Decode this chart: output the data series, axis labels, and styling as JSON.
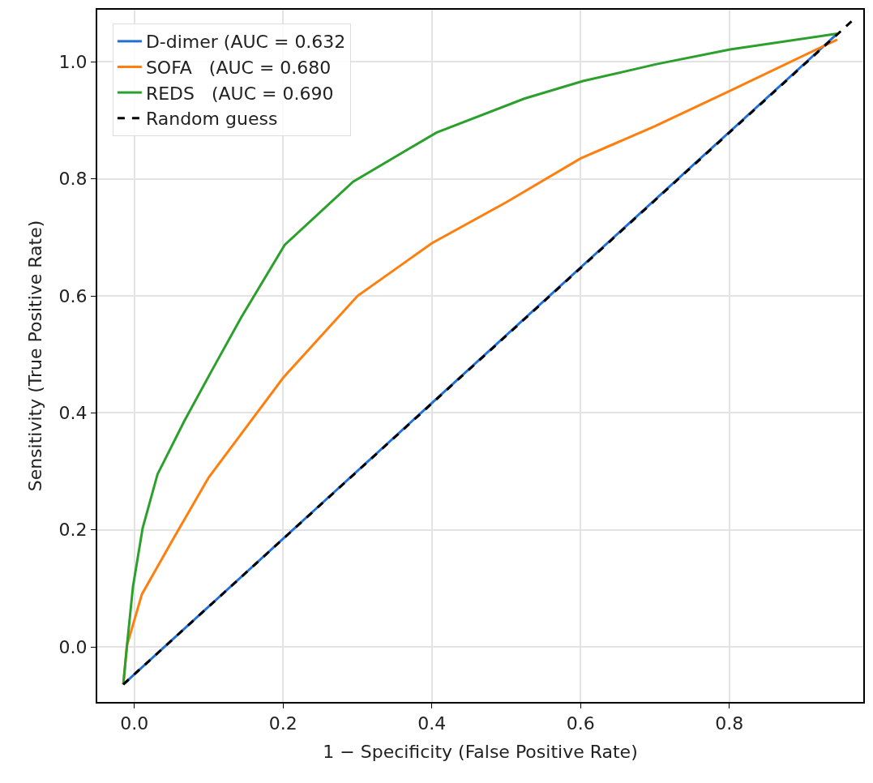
{
  "chart_data": {
    "type": "line",
    "xlabel": "1 − Specificity (False Positive Rate)",
    "ylabel": "Sensitivity (True Positive Rate)",
    "xlim": [
      -0.05,
      0.98
    ],
    "xticks": [
      {
        "value": 0,
        "label": "0.0"
      },
      0.2,
      0.4,
      0.6,
      0.8
    ],
    "ylim": [
      -0.094,
      1.089
    ],
    "yticks": [
      {
        "value": 0,
        "label": "0.0"
      },
      0.2,
      0.4,
      0.6,
      0.8,
      {
        "value": 1,
        "label": "1.0"
      }
    ],
    "grid": true,
    "legend": "top left",
    "series": [
      {
        "name": "D-dimer (AUC = 0.632",
        "color": "#1f6fd6",
        "x": [
          -0.015,
          0.4,
          0.945
        ],
        "values": [
          -0.064,
          0.417,
          1.048
        ]
      },
      {
        "name": "SOFA   (AUC = 0.680",
        "color": "#ff7f0e",
        "x": [
          -0.015,
          -0.01,
          0.01,
          0.05,
          0.1,
          0.2,
          0.3,
          0.4,
          0.5,
          0.6,
          0.7,
          0.8,
          0.945
        ],
        "values": [
          -0.064,
          0.003,
          0.09,
          0.18,
          0.29,
          0.46,
          0.6,
          0.69,
          0.76,
          0.835,
          0.89,
          0.95,
          1.038
        ]
      },
      {
        "name": "REDS   (AUC = 0.690",
        "color": "#2ca02c",
        "x": [
          -0.015,
          -0.01,
          -0.002,
          0.011,
          0.031,
          0.067,
          0.103,
          0.143,
          0.202,
          0.294,
          0.406,
          0.524,
          0.603,
          0.702,
          0.801,
          0.945
        ],
        "values": [
          -0.064,
          0.003,
          0.103,
          0.203,
          0.295,
          0.386,
          0.47,
          0.562,
          0.687,
          0.795,
          0.879,
          0.937,
          0.967,
          0.996,
          1.021,
          1.048
        ]
      },
      {
        "name": "Random guess",
        "color": "#000000",
        "line_style": "dashed",
        "x": [
          -0.015,
          0.965
        ],
        "values": [
          -0.064,
          1.07
        ]
      }
    ]
  }
}
